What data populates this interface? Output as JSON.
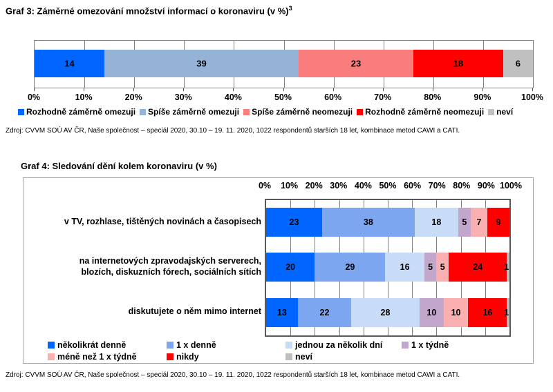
{
  "sources": {
    "graf3": "Zdroj: CVVM SOÚ AV ČR, Naše společnost – speciál 2020, 30.10 – 19. 11. 2020, 1022 respondentů starších 18 let, kombinace metod CAWI a CATI.",
    "graf4": "Zdroj: CVVM SOÚ AV ČR, Naše společnost – speciál 2020, 30.10 – 19. 11. 2020, 1022 respondentů starších 18 let, kombinace metod CAWI a CATI."
  },
  "chart_data": [
    {
      "id": "graf3",
      "type": "bar",
      "stacked": true,
      "orientation": "horizontal",
      "title": "Graf 3: Záměrné omezování množství informací o koronaviru (v %)",
      "title_superscript": "3",
      "categories": [
        "Rozhodně záměrně omezuji",
        "Spíše záměrně omezuji",
        "Spíše záměrně neomezuji",
        "Rozhodně záměrně neomezuji",
        "neví"
      ],
      "values": [
        14,
        39,
        23,
        18,
        6
      ],
      "colors": [
        "#0066FF",
        "#95B3D7",
        "#FA7D7D",
        "#FF0000",
        "#C0C0C0"
      ],
      "xlim": [
        0,
        100
      ],
      "x_tick_labels": [
        "0%",
        "10%",
        "20%",
        "30%",
        "40%",
        "50%",
        "60%",
        "70%",
        "80%",
        "90%",
        "100%"
      ],
      "grid": true,
      "legend_position": "bottom"
    },
    {
      "id": "graf4",
      "type": "bar",
      "stacked": true,
      "orientation": "horizontal",
      "title": "Graf 4: Sledování dění kolem koronaviru (v %)",
      "categories": [
        "v TV, rozhlase, tištěných novinách a časopisech",
        "na internetových zpravodajských serverech,\nblozích, diskuzních fórech, sociálních sítích",
        "diskutujete o něm mimo internet"
      ],
      "series": [
        {
          "name": "několikrát denně",
          "color": "#0066FF",
          "values": [
            23,
            20,
            13
          ]
        },
        {
          "name": "1 x denně",
          "color": "#7DA6F0",
          "values": [
            38,
            29,
            22
          ]
        },
        {
          "name": "jednou za několik dní",
          "color": "#C9DCF7",
          "values": [
            18,
            16,
            28
          ]
        },
        {
          "name": "1 x týdně",
          "color": "#C3A6CC",
          "values": [
            5,
            5,
            10
          ]
        },
        {
          "name": "méně než 1 x týdně",
          "color": "#FAAFB0",
          "values": [
            7,
            5,
            10
          ]
        },
        {
          "name": "nikdy",
          "color": "#FF0000",
          "values": [
            9,
            24,
            16
          ]
        },
        {
          "name": "neví",
          "color": "#BFBFBF",
          "values": [
            0,
            1,
            1
          ]
        }
      ],
      "xlim": [
        0,
        100
      ],
      "x_tick_labels": [
        "0%",
        "10%",
        "20%",
        "30%",
        "40%",
        "50%",
        "60%",
        "70%",
        "80%",
        "90%",
        "100%"
      ],
      "x_axis_position": "top",
      "grid": true,
      "legend_position": "bottom-inside"
    }
  ]
}
